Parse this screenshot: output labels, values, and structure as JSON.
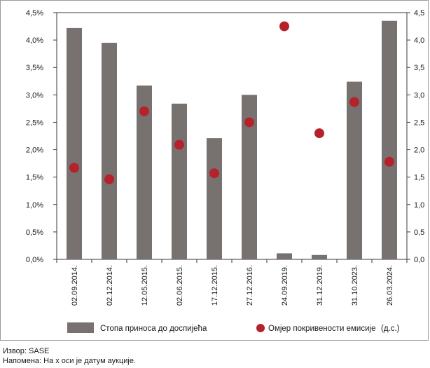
{
  "chart_data": {
    "type": "bar",
    "categories": [
      "02.09.2014.",
      "02.12.2014.",
      "12.05.2015.",
      "02.06.2015.",
      "17.12.2015.",
      "27.12.2016.",
      "24.09.2019.",
      "31.12.2019.",
      "31.10.2023.",
      "26.03.2024."
    ],
    "series": [
      {
        "name": "Стопа приноса до доспијећа",
        "type": "bar",
        "axis": "left",
        "color": "#777170",
        "values": [
          4.22,
          3.95,
          3.17,
          2.84,
          2.21,
          3.0,
          0.11,
          0.08,
          3.24,
          4.35
        ]
      },
      {
        "name": "Омјер покривености емисије",
        "legend_suffix": "(д.с.)",
        "type": "scatter",
        "axis": "right",
        "color": "#b5222b",
        "values": [
          1.67,
          1.46,
          2.7,
          2.09,
          1.57,
          2.5,
          4.25,
          2.3,
          2.87,
          1.78
        ]
      }
    ],
    "y_left": {
      "ylim": [
        0,
        4.5
      ],
      "ticks": [
        "0,0%",
        "0,5%",
        "1,0%",
        "1,5%",
        "2,0%",
        "2,5%",
        "3,0%",
        "3,5%",
        "4,0%",
        "4,5%"
      ]
    },
    "y_right": {
      "ylim": [
        0,
        4.5
      ],
      "ticks": [
        "0,0",
        "0,5",
        "1,0",
        "1,5",
        "2,0",
        "2,5",
        "3,0",
        "3,5",
        "4,0",
        "4,5"
      ]
    },
    "grid": false,
    "legend_position": "bottom"
  },
  "notes": {
    "source": "Извор: SASE",
    "remark": "Напомена: На х оси је датум аукције."
  }
}
